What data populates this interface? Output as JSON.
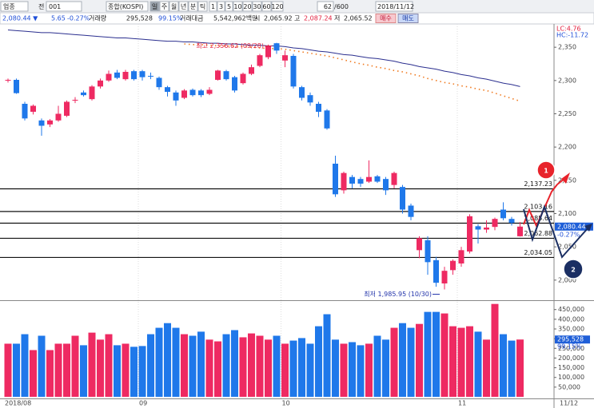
{
  "toolbar": {
    "market": "업종",
    "prefix": "전",
    "code": "001",
    "index_name": "종합(KOSPI)",
    "periods": [
      "일",
      "주",
      "월",
      "년",
      "분",
      "틱"
    ],
    "intervals": [
      "1",
      "3",
      "5",
      "10",
      "20",
      "30",
      "60",
      "120"
    ],
    "count": "62",
    "max": "/600",
    "date": "2018/11/12"
  },
  "quote": {
    "price": "2,080.44 ▼",
    "change": "5.65",
    "change_pct": "-0.27%",
    "volume_label": "거래량",
    "volume": "295,528",
    "volume_ratio": "99.15%",
    "value_label": "거래대금",
    "value": "5,542,962백만",
    "open_label": "시",
    "open": "2,065.92",
    "high_label": "고",
    "high": "2,087.24",
    "low_label": "저",
    "low": "2,065.52",
    "buy": "매수",
    "sell": "매도"
  },
  "chart_data": [
    {
      "type": "candlestick",
      "ylim": [
        1971,
        2385
      ],
      "yticks": [
        {
          "value": 2000,
          "label": "2,000"
        },
        {
          "value": 2050,
          "label": "2,050"
        },
        {
          "value": 2100,
          "label": "2,100"
        },
        {
          "value": 2150,
          "label": "2,150"
        },
        {
          "value": 2200,
          "label": "2,200"
        },
        {
          "value": 2250,
          "label": "2,250"
        },
        {
          "value": 2300,
          "label": "2,300"
        },
        {
          "value": 2350,
          "label": "2,350"
        }
      ],
      "categories": [
        "2018/08",
        null,
        null,
        null,
        null,
        null,
        null,
        null,
        null,
        null,
        null,
        null,
        null,
        null,
        null,
        null,
        "09",
        null,
        null,
        null,
        null,
        null,
        null,
        null,
        null,
        null,
        null,
        null,
        null,
        null,
        null,
        null,
        null,
        "10",
        null,
        null,
        null,
        null,
        null,
        null,
        null,
        null,
        null,
        null,
        null,
        null,
        null,
        null,
        null,
        null,
        null,
        null,
        null,
        null,
        "11",
        null,
        null,
        null,
        null,
        null,
        null,
        null
      ],
      "date_label": "11/12",
      "open": [
        2301,
        2301,
        2265,
        2253,
        2240,
        2234,
        2240,
        2247,
        2270,
        2282,
        2272,
        2291,
        2300,
        2312,
        2302,
        2314,
        2314,
        2307,
        2304,
        2290,
        2282,
        2274,
        2286,
        2285,
        2280,
        2301,
        2314,
        2305,
        2296,
        2310,
        2322,
        2335,
        2356,
        2330,
        2337,
        2290,
        2278,
        2265,
        2255,
        2175,
        2135,
        2155,
        2152,
        2148,
        2156,
        2152,
        2143,
        2140,
        2112,
        2045,
        2060,
        2030,
        1995,
        2015,
        2025,
        2043,
        2081,
        2076,
        2080,
        2106,
        2092,
        2065.92
      ],
      "high": [
        2303,
        2303,
        2268,
        2264,
        2243,
        2242,
        2262,
        2270,
        2275,
        2285,
        2293,
        2303,
        2315,
        2316,
        2316,
        2316,
        2316,
        2312,
        2306,
        2292,
        2285,
        2287,
        2288,
        2287,
        2290,
        2316,
        2316,
        2307,
        2312,
        2324,
        2340,
        2354,
        2356.62,
        2345,
        2340,
        2292,
        2282,
        2268,
        2257,
        2187,
        2163,
        2158,
        2155,
        2180,
        2158,
        2155,
        2163,
        2143,
        2115,
        2066,
        2066,
        2035,
        2020,
        2031,
        2050,
        2099,
        2084,
        2090,
        2094,
        2117,
        2095,
        2087.24
      ],
      "low": [
        2297,
        2280,
        2240,
        2249,
        2217,
        2230,
        2238,
        2245,
        2266,
        2276,
        2270,
        2288,
        2298,
        2302,
        2300,
        2300,
        2300,
        2302,
        2286,
        2276,
        2262,
        2272,
        2276,
        2275,
        2278,
        2300,
        2300,
        2282,
        2294,
        2308,
        2320,
        2332,
        2340,
        2320,
        2288,
        2270,
        2262,
        2245,
        2226,
        2125,
        2130,
        2138,
        2140,
        2146,
        2146,
        2128,
        2138,
        2100,
        2090,
        2033,
        2008,
        1990,
        1985.95,
        2008,
        2020,
        2040,
        2055,
        2071,
        2075,
        2090,
        2082,
        2065.52
      ],
      "close": [
        2301,
        2281,
        2243,
        2262,
        2232,
        2240,
        2250,
        2268,
        2271,
        2278,
        2291,
        2300,
        2310,
        2304,
        2313,
        2302,
        2305,
        2306,
        2290,
        2283,
        2270,
        2285,
        2278,
        2278,
        2286,
        2315,
        2302,
        2285,
        2310,
        2320,
        2338,
        2352,
        2345,
        2338,
        2291,
        2274,
        2267,
        2253,
        2228,
        2129,
        2161,
        2145,
        2145,
        2155,
        2148,
        2135,
        2161,
        2106,
        2095,
        2063,
        2027,
        1996,
        2014,
        2029,
        2045,
        2096,
        2076,
        2079,
        2092,
        2093,
        2086,
        2080.44
      ],
      "up_color": "#ee2a62",
      "down_color": "#1f78ea",
      "lines": [
        {
          "color": "#2b2f8f",
          "style": "solid",
          "values": [
            2376,
            2375,
            2374,
            2373,
            2372,
            2372,
            2371,
            2370,
            2369,
            2368,
            2367,
            2366,
            2365,
            2364,
            2364,
            2363,
            2362,
            2361,
            2360,
            2359,
            2359,
            2358,
            2358,
            2357,
            2356,
            2356,
            2355,
            2355,
            2354,
            2353,
            2353,
            2352,
            2352,
            2351,
            2349,
            2348,
            2346,
            2344,
            2343,
            2341,
            2339,
            2338,
            2336,
            2334,
            2333,
            2331,
            2329,
            2326,
            2324,
            2321,
            2319,
            2317,
            2314,
            2312,
            2309,
            2307,
            2304,
            2302,
            2299,
            2296,
            2294,
            2291
          ]
        },
        {
          "color": "#f07a20",
          "style": "dotted",
          "values": [
            null,
            null,
            null,
            null,
            null,
            null,
            null,
            null,
            null,
            null,
            null,
            null,
            null,
            null,
            null,
            null,
            null,
            null,
            null,
            null,
            null,
            2355,
            2354,
            2354,
            2353,
            2352,
            2352,
            2351,
            2351,
            2350,
            2349,
            2348,
            2348,
            2347,
            2345,
            2343,
            2341,
            2339,
            2337,
            2334,
            2331,
            2328,
            2325,
            2323,
            2320,
            2318,
            2315,
            2313,
            2310,
            2307,
            2303,
            2300,
            2297,
            2295,
            2292,
            2290,
            2287,
            2285,
            2281,
            2277,
            2273,
            2269
          ]
        }
      ],
      "levels": [
        {
          "value": 2137.23,
          "label": "2,137.23"
        },
        {
          "value": 2103.16,
          "label": "2,103.16"
        },
        {
          "value": 2085.64,
          "label": "2,085.64"
        },
        {
          "value": 2062.88,
          "label": "2,062.88"
        },
        {
          "value": 2034.05,
          "label": "2,034.05"
        }
      ],
      "high_note": {
        "text": "최고 2,356.62 (09/28)",
        "color": "#e2203f"
      },
      "low_note": {
        "text": "최저 1,985.95 (10/30)",
        "color": "#2233aa"
      },
      "last_label": "2,080.44",
      "change_label": "-0.27%",
      "indicators": [
        {
          "text": "LC:4.76",
          "color": "#e2203f"
        },
        {
          "text": "HC:-11.72",
          "color": "#1f4fd8"
        }
      ],
      "callouts": [
        {
          "text": "1",
          "color": "#e8232b"
        },
        {
          "text": "2",
          "color": "#1b2f63"
        }
      ]
    },
    {
      "type": "bar",
      "ylim": [
        0,
        490000
      ],
      "yticks": [
        {
          "value": 50000,
          "label": "50,000"
        },
        {
          "value": 100000,
          "label": "100,000"
        },
        {
          "value": 150000,
          "label": "150,000"
        },
        {
          "value": 200000,
          "label": "200,000"
        },
        {
          "value": 250000,
          "label": "250,000"
        },
        {
          "value": 300000,
          "label": "300,000"
        },
        {
          "value": 350000,
          "label": "350,000"
        },
        {
          "value": 400000,
          "label": "400,000"
        },
        {
          "value": 450000,
          "label": "450,000"
        }
      ],
      "values": [
        274000,
        274000,
        323000,
        241000,
        315000,
        241000,
        274000,
        274000,
        315000,
        266000,
        331000,
        295000,
        323000,
        266000,
        274000,
        258000,
        262000,
        323000,
        356000,
        380000,
        356000,
        323000,
        315000,
        336000,
        295000,
        286000,
        323000,
        344000,
        307000,
        327000,
        315000,
        295000,
        315000,
        274000,
        290000,
        303000,
        274000,
        364000,
        426000,
        295000,
        274000,
        282000,
        266000,
        274000,
        315000,
        295000,
        356000,
        380000,
        356000,
        376000,
        438000,
        438000,
        430000,
        364000,
        356000,
        364000,
        336000,
        295000,
        479000,
        323000,
        290000,
        295528
      ],
      "last_label": "295,528",
      "ratio_label": "99.15%"
    }
  ]
}
